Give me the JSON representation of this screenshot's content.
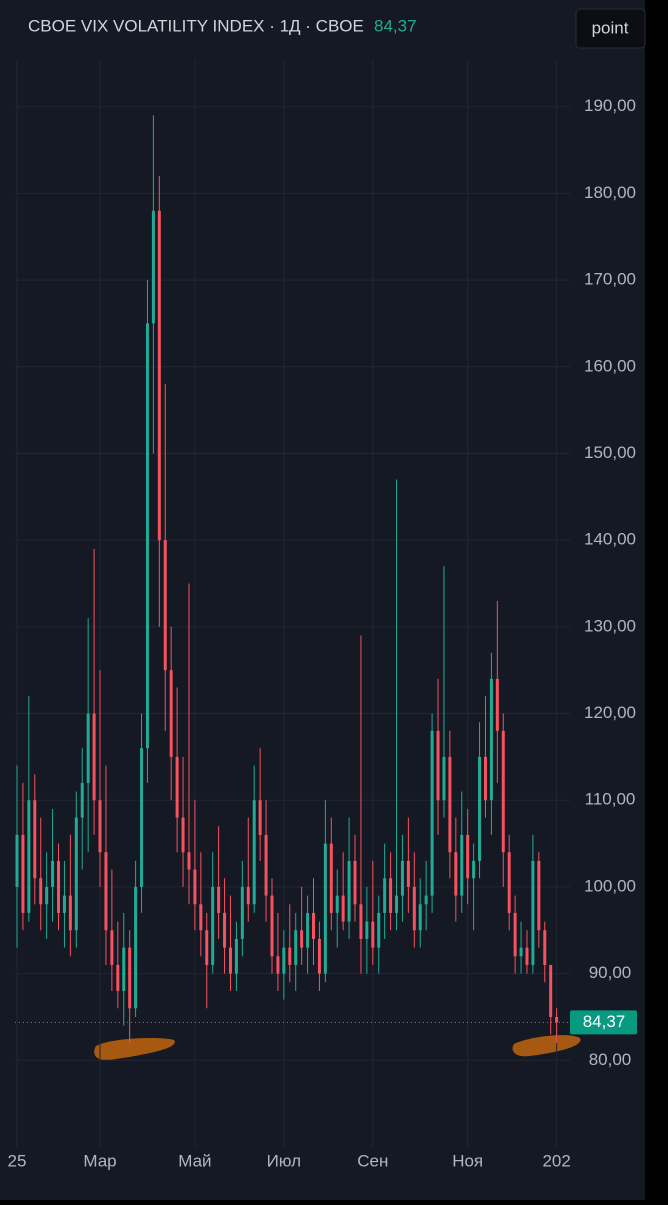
{
  "chart_data": {
    "type": "candlestick",
    "title": "CBOE VIX VOLATILITY INDEX · 1Д · CBOE",
    "button": "point",
    "last_price": {
      "value": 84.37,
      "label": "84,37"
    },
    "up_color": "#22ab94",
    "down_color": "#f7525f",
    "grid": true,
    "categories": [
      "25",
      null,
      null,
      null,
      null,
      null,
      null,
      null,
      null,
      null,
      null,
      null,
      null,
      null,
      "Мар",
      null,
      null,
      null,
      null,
      null,
      null,
      null,
      null,
      null,
      null,
      null,
      null,
      null,
      null,
      null,
      "Май",
      null,
      null,
      null,
      null,
      null,
      null,
      null,
      null,
      null,
      null,
      null,
      null,
      null,
      null,
      "Июл",
      null,
      null,
      null,
      null,
      null,
      null,
      null,
      null,
      null,
      null,
      null,
      null,
      null,
      null,
      "Сен",
      null,
      null,
      null,
      null,
      null,
      null,
      null,
      null,
      null,
      null,
      null,
      null,
      null,
      null,
      null,
      "Ноя",
      null,
      null,
      null,
      null,
      null,
      null,
      null,
      null,
      null,
      null,
      null,
      null,
      null,
      null,
      "202"
    ],
    "open": [
      100,
      106,
      97,
      110,
      101,
      98,
      100,
      103,
      97,
      99,
      95,
      108,
      112,
      120,
      110,
      104,
      95,
      91,
      88,
      93,
      86,
      100,
      116,
      165,
      178,
      140,
      125,
      115,
      108,
      104,
      102,
      98,
      95,
      91,
      100,
      97,
      93,
      90,
      94,
      100,
      98,
      110,
      106,
      99,
      92,
      90,
      93,
      91,
      95,
      93,
      97,
      94,
      90,
      105,
      97,
      99,
      96,
      103,
      98,
      94,
      96,
      93,
      97,
      101,
      97,
      99,
      103,
      100,
      95,
      98,
      99,
      118,
      110,
      115,
      104,
      99,
      106,
      101,
      103,
      115,
      110,
      124,
      118,
      104,
      97,
      92,
      93,
      91,
      103,
      95,
      91,
      85
    ],
    "high": [
      114,
      112,
      122,
      113,
      108,
      104,
      109,
      105,
      103,
      106,
      111,
      116,
      131,
      139,
      125,
      114,
      102,
      96,
      97,
      95,
      103,
      120,
      170,
      189,
      182,
      158,
      130,
      123,
      115,
      135,
      110,
      104,
      97,
      104,
      107,
      101,
      99,
      96,
      103,
      108,
      114,
      116,
      110,
      101,
      97,
      95,
      98,
      97,
      100,
      99,
      101,
      96,
      110,
      108,
      102,
      104,
      108,
      106,
      129,
      100,
      103,
      99,
      105,
      104,
      147,
      106,
      108,
      104,
      101,
      103,
      120,
      124,
      137,
      118,
      108,
      111,
      109,
      105,
      119,
      122,
      127,
      133,
      120,
      106,
      99,
      96,
      95,
      106,
      104,
      96,
      91,
      86
    ],
    "low": [
      93,
      95,
      96,
      98,
      95,
      94,
      96,
      95,
      93,
      92,
      93,
      102,
      104,
      106,
      100,
      91,
      88,
      86,
      84,
      82,
      85,
      97,
      112,
      150,
      130,
      118,
      110,
      104,
      100,
      98,
      95,
      92,
      86,
      90,
      94,
      90,
      88,
      88,
      92,
      96,
      97,
      103,
      96,
      90,
      88,
      87,
      89,
      88,
      91,
      90,
      91,
      88,
      89,
      95,
      93,
      95,
      94,
      96,
      90,
      90,
      91,
      90,
      94,
      95,
      95,
      96,
      97,
      93,
      93,
      95,
      97,
      106,
      108,
      101,
      96,
      97,
      98,
      95,
      101,
      108,
      106,
      112,
      100,
      95,
      90,
      90,
      90,
      90,
      93,
      89,
      83,
      82
    ],
    "close": [
      106,
      97,
      110,
      101,
      98,
      100,
      103,
      97,
      99,
      95,
      108,
      112,
      120,
      110,
      104,
      95,
      91,
      88,
      93,
      86,
      100,
      116,
      165,
      178,
      140,
      125,
      115,
      108,
      104,
      102,
      98,
      95,
      91,
      100,
      97,
      93,
      90,
      94,
      100,
      98,
      110,
      106,
      99,
      92,
      90,
      93,
      91,
      95,
      93,
      97,
      94,
      90,
      105,
      97,
      99,
      96,
      103,
      98,
      94,
      96,
      93,
      97,
      101,
      97,
      99,
      103,
      100,
      95,
      98,
      99,
      118,
      110,
      115,
      104,
      99,
      106,
      101,
      103,
      115,
      110,
      124,
      118,
      104,
      97,
      92,
      93,
      91,
      103,
      95,
      91,
      85,
      84.37
    ],
    "ylim": [
      70,
      200
    ],
    "yticks": [
      {
        "value": 80,
        "label": "80,00"
      },
      {
        "value": 90,
        "label": "90,00"
      },
      {
        "value": 100,
        "label": "100,00"
      },
      {
        "value": 110,
        "label": "110,00"
      },
      {
        "value": 120,
        "label": "120,00"
      },
      {
        "value": 130,
        "label": "130,00"
      },
      {
        "value": 140,
        "label": "140,00"
      },
      {
        "value": 150,
        "label": "150,00"
      },
      {
        "value": 160,
        "label": "160,00"
      },
      {
        "value": 170,
        "label": "170,00"
      },
      {
        "value": 180,
        "label": "180,00"
      },
      {
        "value": 190,
        "label": "190,00"
      }
    ]
  }
}
